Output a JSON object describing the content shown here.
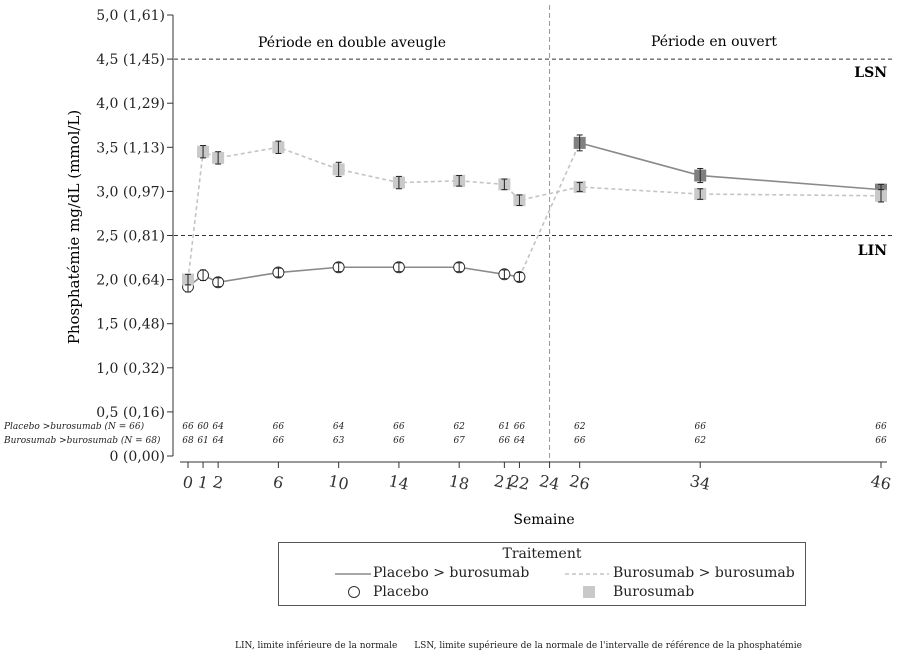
{
  "chart_data": {
    "type": "line",
    "ylabel": "Phosphatémie mg/dL (mmol/L)",
    "xlabel": "Semaine",
    "ylim": [
      0,
      5
    ],
    "y_ticks": [
      {
        "v": 0,
        "label": "0 (0,00)"
      },
      {
        "v": 0.5,
        "label": "0,5 (0,16)"
      },
      {
        "v": 1.0,
        "label": "1,0 (0,32)"
      },
      {
        "v": 1.5,
        "label": "1,5 (0,48)"
      },
      {
        "v": 2.0,
        "label": "2,0 (0,64)"
      },
      {
        "v": 2.5,
        "label": "2,5 (0,81)"
      },
      {
        "v": 3.0,
        "label": "3,0 (0,97)"
      },
      {
        "v": 3.5,
        "label": "3,5 (1,13)"
      },
      {
        "v": 4.0,
        "label": "4,0 (1,29)"
      },
      {
        "v": 4.5,
        "label": "4,5 (1,45)"
      },
      {
        "v": 5.0,
        "label": "5,0 (1,61)"
      }
    ],
    "x_ticks": [
      {
        "v": 0,
        "label": "0"
      },
      {
        "v": 1,
        "label": "1"
      },
      {
        "v": 2,
        "label": "2"
      },
      {
        "v": 6,
        "label": "6"
      },
      {
        "v": 10,
        "label": "10"
      },
      {
        "v": 14,
        "label": "14"
      },
      {
        "v": 18,
        "label": "18"
      },
      {
        "v": 21,
        "label": "21"
      },
      {
        "v": 22,
        "label": "22"
      },
      {
        "v": 24,
        "label": "24"
      },
      {
        "v": 26,
        "label": "26"
      },
      {
        "v": 34,
        "label": "34"
      },
      {
        "v": 46,
        "label": "46"
      }
    ],
    "reference_lines": [
      {
        "name": "LSN",
        "y": 4.5,
        "label": "LSN"
      },
      {
        "name": "LIN",
        "y": 2.5,
        "label": "LIN"
      }
    ],
    "period_divider_x": 24,
    "periods": [
      {
        "label": "Période en double aveugle"
      },
      {
        "label": "Période en ouvert"
      }
    ],
    "series": [
      {
        "name": "Placebo > burosumab",
        "points": [
          {
            "x": 0,
            "y": 1.92,
            "err": 0.06,
            "marker": "circle"
          },
          {
            "x": 1,
            "y": 2.05,
            "err": 0.06,
            "marker": "circle"
          },
          {
            "x": 2,
            "y": 1.97,
            "err": 0.05,
            "marker": "circle"
          },
          {
            "x": 6,
            "y": 2.08,
            "err": 0.05,
            "marker": "circle"
          },
          {
            "x": 10,
            "y": 2.14,
            "err": 0.05,
            "marker": "circle"
          },
          {
            "x": 14,
            "y": 2.14,
            "err": 0.05,
            "marker": "circle"
          },
          {
            "x": 18,
            "y": 2.14,
            "err": 0.05,
            "marker": "circle"
          },
          {
            "x": 21,
            "y": 2.06,
            "err": 0.05,
            "marker": "circle"
          },
          {
            "x": 22,
            "y": 2.03,
            "err": 0.05,
            "marker": "circle"
          },
          {
            "x": 26,
            "y": 3.55,
            "err": 0.09,
            "marker": "square"
          },
          {
            "x": 34,
            "y": 3.18,
            "err": 0.08,
            "marker": "square"
          },
          {
            "x": 46,
            "y": 3.02,
            "err": 0.06,
            "marker": "square"
          }
        ]
      },
      {
        "name": "Burosumab > burosumab",
        "points": [
          {
            "x": 0,
            "y": 2.0,
            "err": 0.06,
            "marker": "square"
          },
          {
            "x": 1,
            "y": 3.45,
            "err": 0.07,
            "marker": "square"
          },
          {
            "x": 2,
            "y": 3.38,
            "err": 0.07,
            "marker": "square"
          },
          {
            "x": 6,
            "y": 3.5,
            "err": 0.07,
            "marker": "square"
          },
          {
            "x": 10,
            "y": 3.25,
            "err": 0.08,
            "marker": "square"
          },
          {
            "x": 14,
            "y": 3.1,
            "err": 0.07,
            "marker": "square"
          },
          {
            "x": 18,
            "y": 3.12,
            "err": 0.06,
            "marker": "square"
          },
          {
            "x": 21,
            "y": 3.08,
            "err": 0.06,
            "marker": "square"
          },
          {
            "x": 22,
            "y": 2.9,
            "err": 0.06,
            "marker": "square"
          },
          {
            "x": 26,
            "y": 3.05,
            "err": 0.05,
            "marker": "square"
          },
          {
            "x": 34,
            "y": 2.97,
            "err": 0.06,
            "marker": "square"
          },
          {
            "x": 46,
            "y": 2.95,
            "err": 0.07,
            "marker": "square"
          }
        ]
      }
    ],
    "n_at_risk": [
      {
        "label": "Placebo >burosumab (N = 66)",
        "values": [
          {
            "x": 0,
            "n": "66"
          },
          {
            "x": 1,
            "n": "60"
          },
          {
            "x": 2,
            "n": "64"
          },
          {
            "x": 6,
            "n": "66"
          },
          {
            "x": 10,
            "n": "64"
          },
          {
            "x": 14,
            "n": "66"
          },
          {
            "x": 18,
            "n": "62"
          },
          {
            "x": 21,
            "n": "61"
          },
          {
            "x": 22,
            "n": "66"
          },
          {
            "x": 26,
            "n": "62"
          },
          {
            "x": 34,
            "n": "66"
          },
          {
            "x": 46,
            "n": "66"
          }
        ]
      },
      {
        "label": "Burosumab >burosumab (N = 68)",
        "values": [
          {
            "x": 0,
            "n": "68"
          },
          {
            "x": 1,
            "n": "61"
          },
          {
            "x": 2,
            "n": "64"
          },
          {
            "x": 6,
            "n": "66"
          },
          {
            "x": 10,
            "n": "63"
          },
          {
            "x": 14,
            "n": "66"
          },
          {
            "x": 18,
            "n": "67"
          },
          {
            "x": 21,
            "n": "66"
          },
          {
            "x": 22,
            "n": "64"
          },
          {
            "x": 26,
            "n": "66"
          },
          {
            "x": 34,
            "n": "62"
          },
          {
            "x": 46,
            "n": "66"
          }
        ]
      }
    ],
    "colors": {
      "placebo_line": "#8a8a8a",
      "burosumab_line": "#c4c4c4",
      "square_light": "#c9c9c9",
      "square_dark": "#808080",
      "axis": "#333333"
    }
  },
  "legend": {
    "title": "Traitement",
    "items": [
      {
        "label": "Placebo   > burosumab"
      },
      {
        "label": "Burosumab > burosumab"
      },
      {
        "label": "Placebo"
      },
      {
        "label": "Burosumab"
      }
    ]
  },
  "footnote": {
    "lin": "LIN, limite inférieure de la normale",
    "lsn": "LSN, limite supérieure de la normale de l'intervalle de référence de la phosphatémie"
  }
}
